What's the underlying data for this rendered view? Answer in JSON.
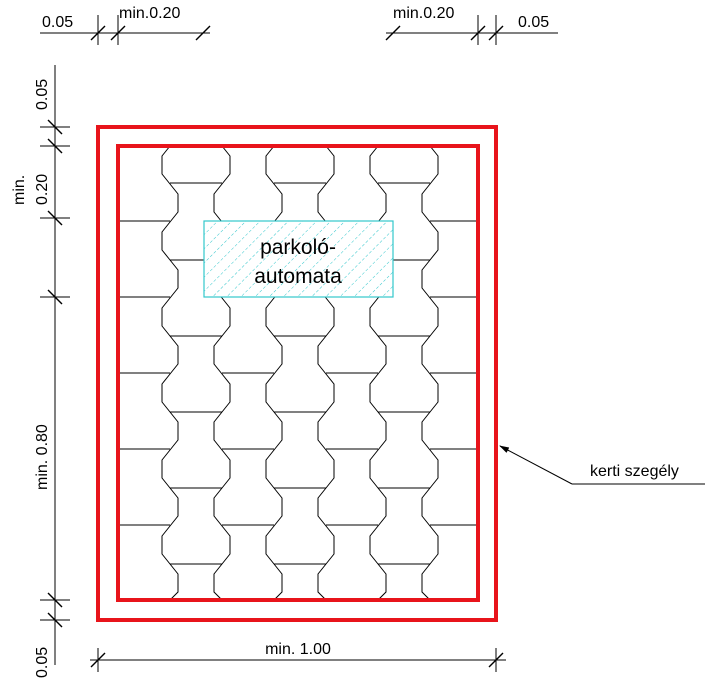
{
  "colors": {
    "border": "#e8141b",
    "machine": "#33c7cc",
    "lines": "#000000"
  },
  "dimensions": {
    "top_left_outer": "0.05",
    "top_left_min": "min.0.20",
    "top_right_min": "min.0.20",
    "top_right_outer": "0.05",
    "left_top_outer": "0.05",
    "left_min_prefix": "min.",
    "left_min_value": "0.20",
    "left_long": "min. 0.80",
    "left_bottom_outer": "0.05",
    "bottom_width": "min. 1.00"
  },
  "labels": {
    "machine_line1": "parkoló-",
    "machine_line2": "automata",
    "edge_callout": "kerti szegély"
  }
}
